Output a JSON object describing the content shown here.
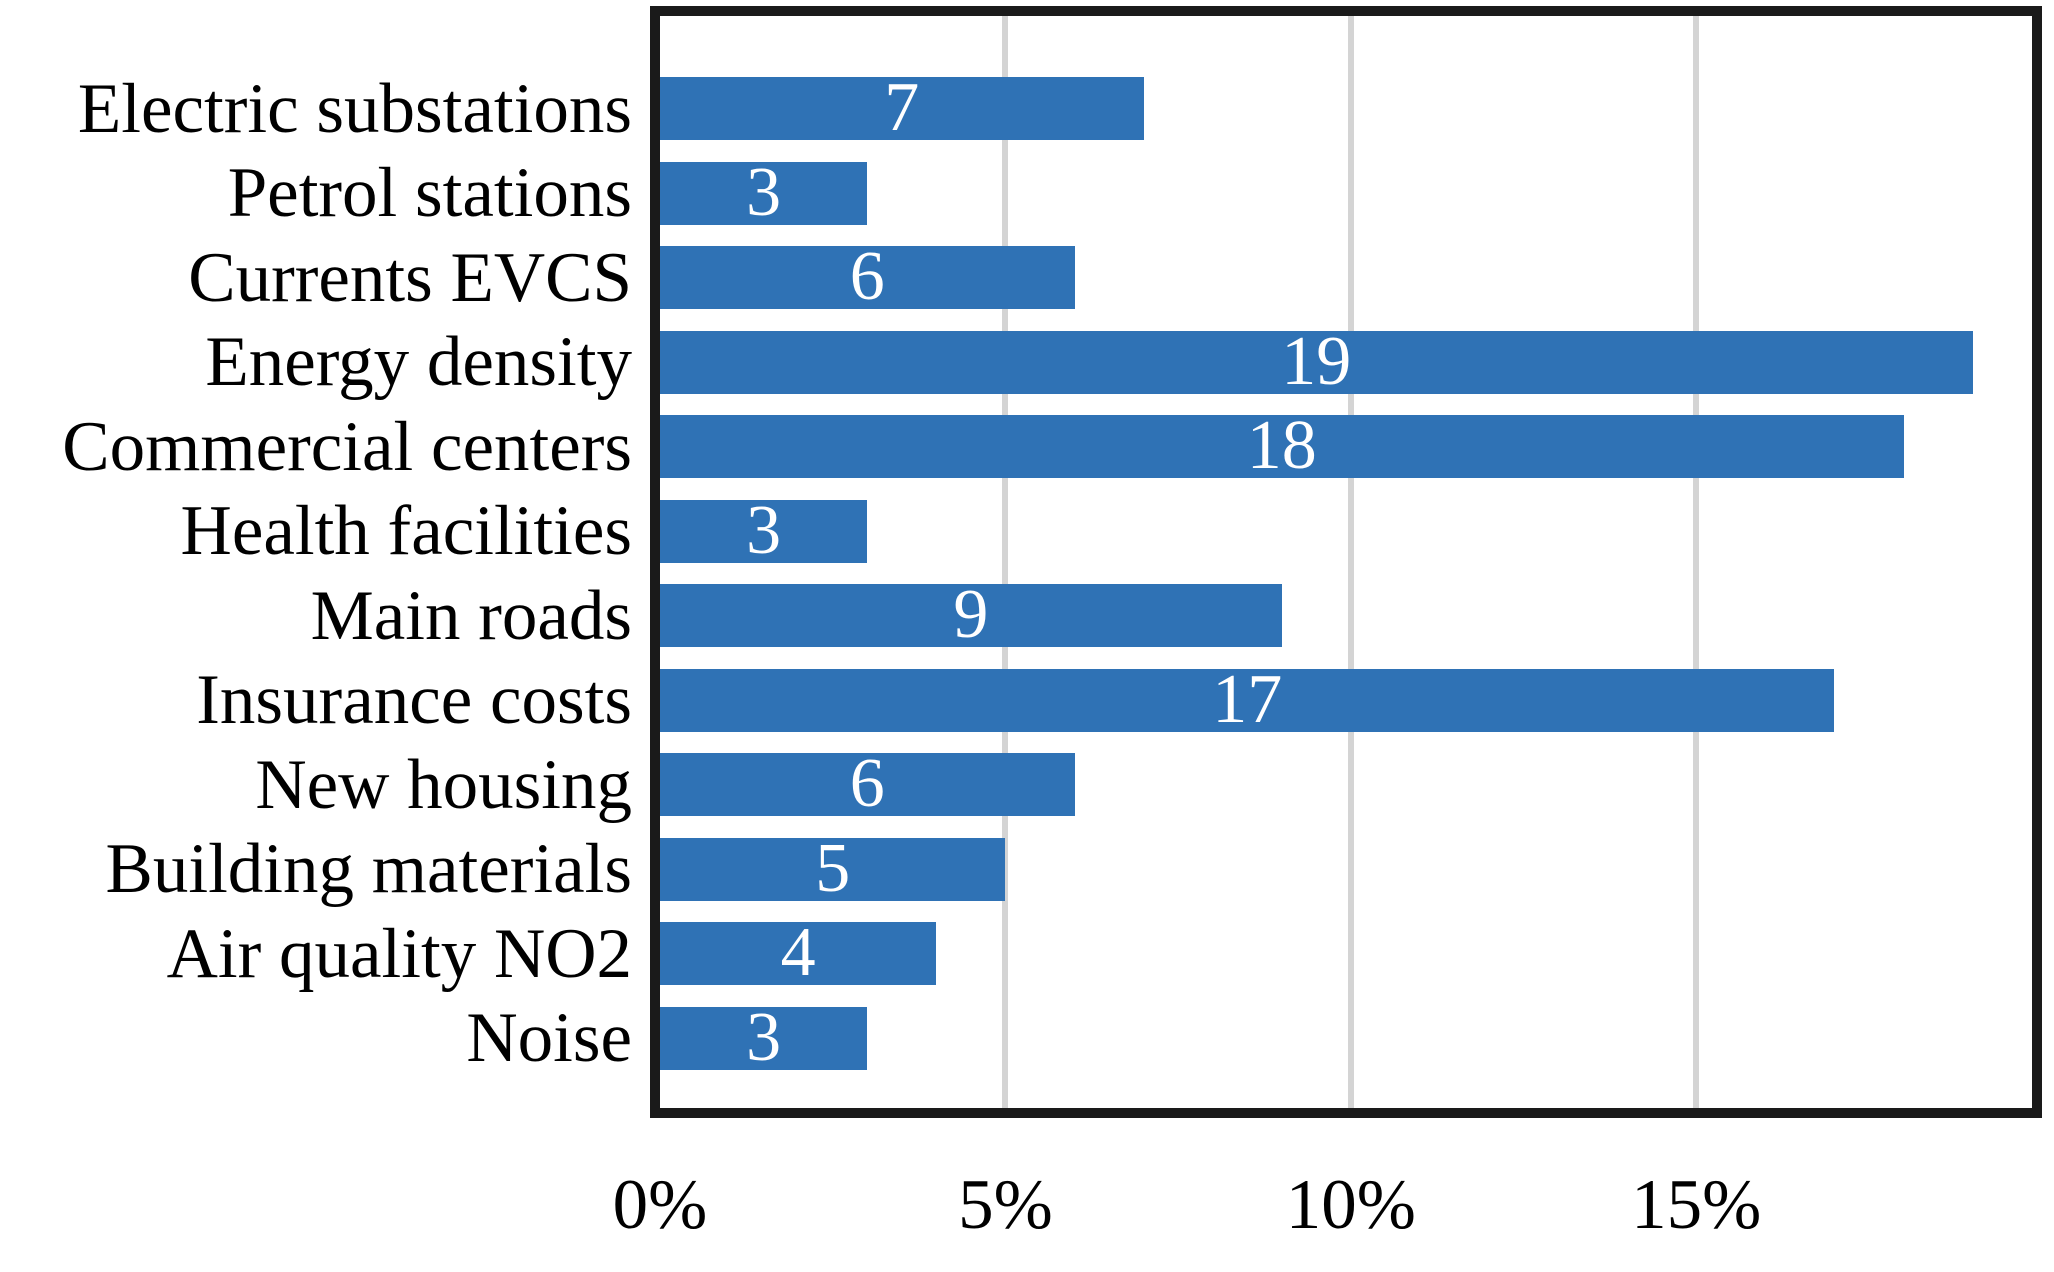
{
  "chart_data": {
    "type": "bar",
    "orientation": "horizontal",
    "title": "",
    "xlabel": "",
    "ylabel": "",
    "categories": [
      "Electric substations",
      "Petrol stations",
      "Currents EVCS",
      "Energy density",
      "Commercial centers",
      "Health facilities",
      "Main roads",
      "Insurance costs",
      "New housing",
      "Building materials",
      "Air quality NO2",
      "Noise"
    ],
    "values": [
      7,
      3,
      6,
      19,
      18,
      3,
      9,
      17,
      6,
      5,
      4,
      3
    ],
    "data_labels": [
      "7",
      "3",
      "6",
      "19",
      "18",
      "3",
      "9",
      "17",
      "6",
      "5",
      "4",
      "3"
    ],
    "x_ticks": [
      {
        "value": 0,
        "label": "0%"
      },
      {
        "value": 5,
        "label": "5%"
      },
      {
        "value": 10,
        "label": "10%"
      },
      {
        "value": 15,
        "label": "15%"
      }
    ],
    "xlim": [
      0,
      19.86
    ],
    "grid": "vertical gridlines at x ticks, behind bars",
    "legend": "none",
    "colors": {
      "bar": "#2f72b5",
      "bar_label_text": "#ffffff",
      "gridline": "#d4d4d4",
      "axis_frame": "#1a1a1a",
      "category_label_text": "#000000",
      "tick_label_text": "#000000"
    }
  }
}
